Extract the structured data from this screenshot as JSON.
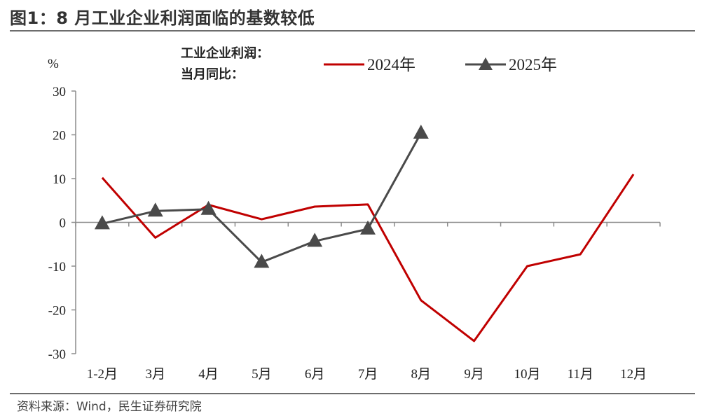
{
  "header": {
    "title": "图1：8 月工业企业利润面临的基数较低"
  },
  "footer": {
    "source": "资料来源：Wind，民生证券研究院"
  },
  "chart_data": {
    "type": "line",
    "ylabel": "%",
    "legend_title_line1": "工业企业利润：",
    "legend_title_line2": "当月同比：",
    "legend_position": "top",
    "categories": [
      "1-2月",
      "3月",
      "4月",
      "5月",
      "6月",
      "7月",
      "8月",
      "9月",
      "10月",
      "11月",
      "12月"
    ],
    "ylim": [
      -30,
      30
    ],
    "yticks": [
      30,
      20,
      10,
      0,
      -10,
      -20,
      -30
    ],
    "grid": false,
    "series": [
      {
        "name": "2024年",
        "color": "#c00000",
        "marker": "none",
        "values": [
          10.2,
          -3.5,
          4.0,
          0.7,
          3.6,
          4.1,
          -17.8,
          -27.1,
          -10.0,
          -7.3,
          11.0
        ]
      },
      {
        "name": "2025年",
        "color": "#4a4a4a",
        "marker": "triangle",
        "values": [
          -0.3,
          2.6,
          3.0,
          -9.1,
          -4.3,
          -1.5,
          20.4,
          null,
          null,
          null,
          null
        ]
      }
    ]
  }
}
